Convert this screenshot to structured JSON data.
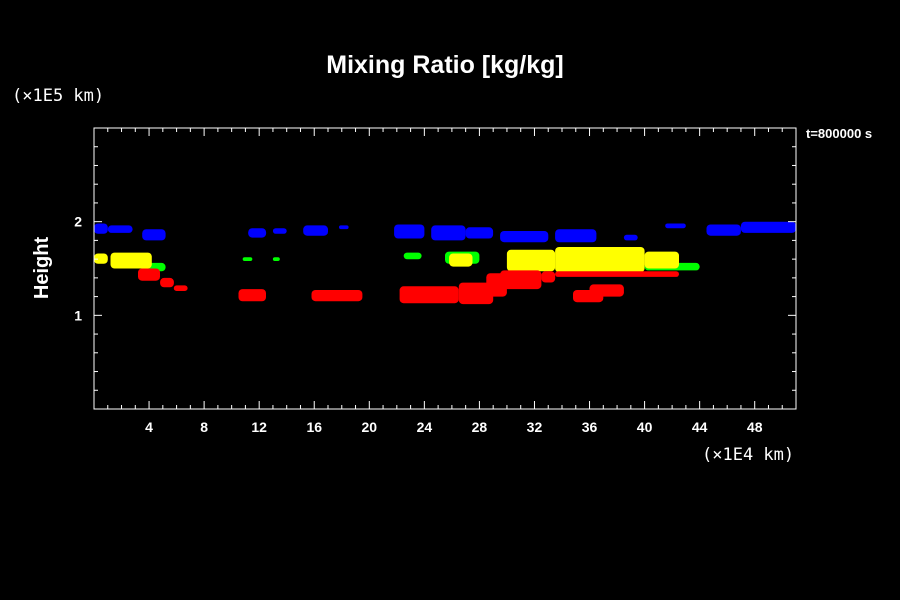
{
  "chart_data": {
    "type": "scatter",
    "title": "Mixing Ratio [kg/kg]",
    "xlabel": "",
    "ylabel": "Height",
    "x_unit": "(×1E4 km)",
    "y_unit": "(×1E5 km)",
    "time_label": "t=800000 s",
    "xlim": [
      0,
      51
    ],
    "ylim": [
      0,
      3
    ],
    "x_ticks": [
      4,
      8,
      12,
      16,
      20,
      24,
      28,
      32,
      36,
      40,
      44,
      48
    ],
    "x_tick_labels": [
      "4",
      "8",
      "12",
      "16",
      "20",
      "24",
      "28",
      "32",
      "36",
      "40",
      "44",
      "48"
    ],
    "y_ticks": [
      1,
      2
    ],
    "y_tick_labels": [
      "1",
      "2"
    ],
    "grid": false,
    "legend": "none",
    "colors": {
      "background": "#000000",
      "foreground": "#ffffff"
    },
    "series": [
      {
        "color": "#0000ff",
        "regions": [
          {
            "x": [
              0.0,
              1.0
            ],
            "y": [
              1.87,
              1.98
            ]
          },
          {
            "x": [
              1.0,
              2.8
            ],
            "y": [
              1.88,
              1.96
            ]
          },
          {
            "x": [
              3.5,
              5.2
            ],
            "y": [
              1.8,
              1.92
            ]
          },
          {
            "x": [
              11.2,
              12.5
            ],
            "y": [
              1.83,
              1.93
            ]
          },
          {
            "x": [
              13.0,
              14.0
            ],
            "y": [
              1.87,
              1.93
            ]
          },
          {
            "x": [
              15.2,
              17.0
            ],
            "y": [
              1.85,
              1.96
            ]
          },
          {
            "x": [
              17.8,
              18.5
            ],
            "y": [
              1.92,
              1.96
            ]
          },
          {
            "x": [
              21.8,
              24.0
            ],
            "y": [
              1.82,
              1.97
            ]
          },
          {
            "x": [
              24.5,
              27.0
            ],
            "y": [
              1.8,
              1.96
            ]
          },
          {
            "x": [
              27.0,
              29.0
            ],
            "y": [
              1.82,
              1.94
            ]
          },
          {
            "x": [
              29.5,
              33.0
            ],
            "y": [
              1.78,
              1.9
            ]
          },
          {
            "x": [
              33.5,
              36.5
            ],
            "y": [
              1.78,
              1.92
            ]
          },
          {
            "x": [
              38.5,
              39.5
            ],
            "y": [
              1.8,
              1.86
            ]
          },
          {
            "x": [
              41.5,
              43.0
            ],
            "y": [
              1.93,
              1.98
            ]
          },
          {
            "x": [
              44.5,
              47.0
            ],
            "y": [
              1.85,
              1.97
            ]
          },
          {
            "x": [
              47.0,
              51.0
            ],
            "y": [
              1.88,
              2.0
            ]
          }
        ]
      },
      {
        "color": "#00ff00",
        "regions": [
          {
            "x": [
              3.8,
              5.2
            ],
            "y": [
              1.47,
              1.56
            ]
          },
          {
            "x": [
              10.8,
              11.5
            ],
            "y": [
              1.58,
              1.62
            ]
          },
          {
            "x": [
              13.0,
              13.5
            ],
            "y": [
              1.58,
              1.62
            ]
          },
          {
            "x": [
              22.5,
              23.8
            ],
            "y": [
              1.6,
              1.67
            ]
          },
          {
            "x": [
              25.5,
              28.0
            ],
            "y": [
              1.55,
              1.68
            ]
          },
          {
            "x": [
              40.0,
              44.0
            ],
            "y": [
              1.48,
              1.56
            ]
          }
        ]
      },
      {
        "color": "#ffff00",
        "regions": [
          {
            "x": [
              0.0,
              1.0
            ],
            "y": [
              1.55,
              1.66
            ]
          },
          {
            "x": [
              1.2,
              4.2
            ],
            "y": [
              1.5,
              1.67
            ]
          },
          {
            "x": [
              25.8,
              27.5
            ],
            "y": [
              1.52,
              1.66
            ]
          },
          {
            "x": [
              30.0,
              33.5
            ],
            "y": [
              1.47,
              1.7
            ]
          },
          {
            "x": [
              33.5,
              40.0
            ],
            "y": [
              1.46,
              1.73
            ]
          },
          {
            "x": [
              40.0,
              42.5
            ],
            "y": [
              1.5,
              1.68
            ]
          }
        ]
      },
      {
        "color": "#ff0000",
        "regions": [
          {
            "x": [
              3.2,
              4.8
            ],
            "y": [
              1.37,
              1.5
            ]
          },
          {
            "x": [
              4.8,
              5.8
            ],
            "y": [
              1.3,
              1.4
            ]
          },
          {
            "x": [
              5.8,
              6.8
            ],
            "y": [
              1.26,
              1.32
            ]
          },
          {
            "x": [
              10.5,
              12.5
            ],
            "y": [
              1.15,
              1.28
            ]
          },
          {
            "x": [
              15.8,
              19.5
            ],
            "y": [
              1.15,
              1.27
            ]
          },
          {
            "x": [
              22.2,
              26.5
            ],
            "y": [
              1.13,
              1.31
            ]
          },
          {
            "x": [
              26.5,
              29.0
            ],
            "y": [
              1.12,
              1.35
            ]
          },
          {
            "x": [
              28.5,
              30.0
            ],
            "y": [
              1.2,
              1.45
            ]
          },
          {
            "x": [
              29.5,
              32.5
            ],
            "y": [
              1.28,
              1.48
            ]
          },
          {
            "x": [
              32.5,
              33.5
            ],
            "y": [
              1.35,
              1.47
            ]
          },
          {
            "x": [
              33.5,
              42.5
            ],
            "y": [
              1.41,
              1.47
            ]
          },
          {
            "x": [
              34.8,
              37.0
            ],
            "y": [
              1.14,
              1.27
            ]
          },
          {
            "x": [
              36.0,
              38.5
            ],
            "y": [
              1.2,
              1.33
            ]
          }
        ]
      }
    ]
  }
}
